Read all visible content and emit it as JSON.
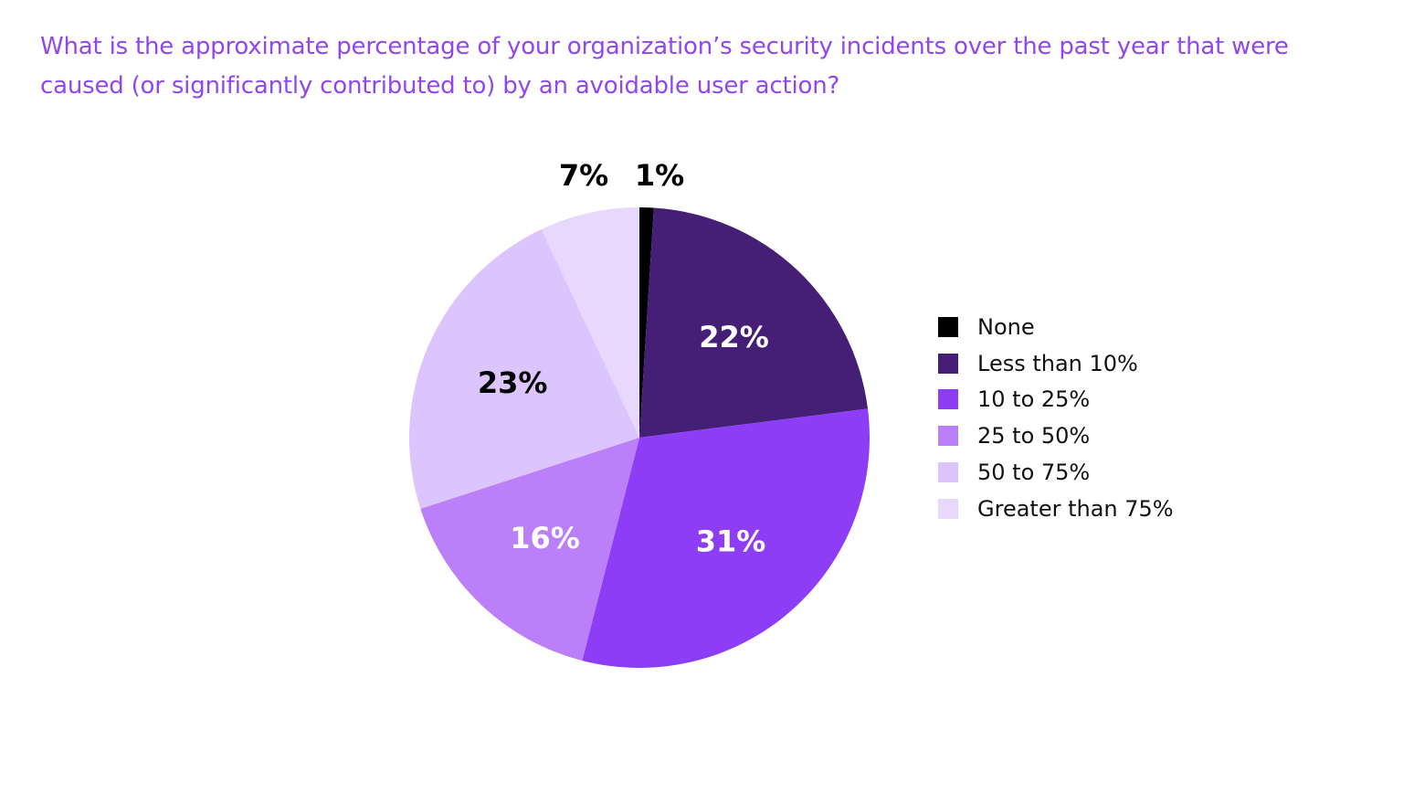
{
  "chart_data": {
    "type": "pie",
    "title": "What is the approximate percentage of your organization’s security incidents over the past year that were caused (or significantly contributed to) by an avoidable user action?",
    "legend_position": "right",
    "slices": [
      {
        "name": "None",
        "value": 1,
        "label": "1%",
        "color": "#000000",
        "label_color": "#000000"
      },
      {
        "name": "Less than 10%",
        "value": 22,
        "label": "22%",
        "color": "#451f75",
        "label_color": "#ffffff"
      },
      {
        "name": "10 to 25%",
        "value": 31,
        "label": "31%",
        "color": "#8c3df5",
        "label_color": "#ffffff"
      },
      {
        "name": "25 to 50%",
        "value": 16,
        "label": "16%",
        "color": "#bb7ffa",
        "label_color": "#ffffff"
      },
      {
        "name": "50 to 75%",
        "value": 23,
        "label": "23%",
        "color": "#dcc4fd",
        "label_color": "#000000"
      },
      {
        "name": "Greater than 75%",
        "value": 7,
        "label": "7%",
        "color": "#e8d8fe",
        "label_color": "#000000"
      }
    ]
  }
}
